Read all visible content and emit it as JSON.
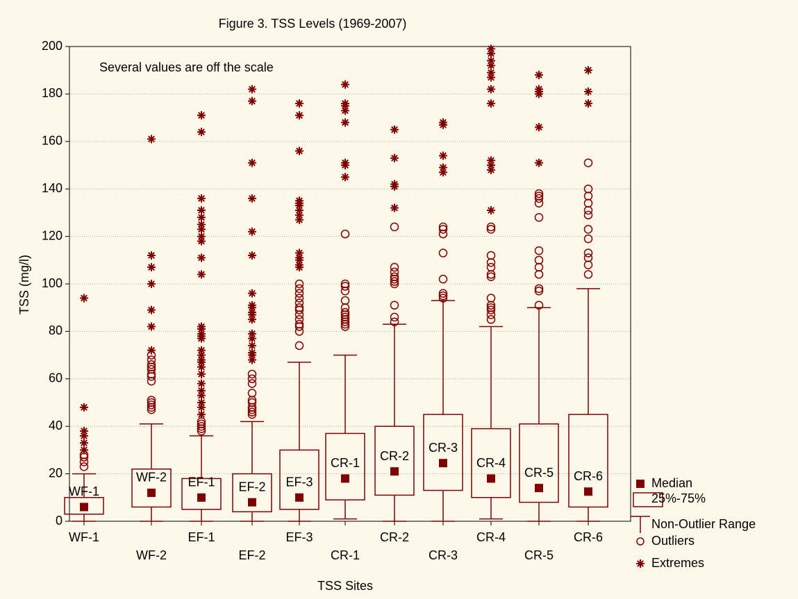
{
  "chart_data": {
    "type": "box",
    "title": "Figure 3. TSS Levels (1969-2007)",
    "xlabel": "TSS Sites",
    "ylabel": "TSS (mg/l)",
    "annotation": "Several values are off the scale",
    "color": "#7f0000",
    "annotation_color": "#1a1aff",
    "grid": true,
    "ylim": [
      0,
      200
    ],
    "yticks": [
      0,
      20,
      40,
      60,
      80,
      100,
      120,
      140,
      160,
      180,
      200
    ],
    "categories": [
      "WF-1",
      "WF-2",
      "EF-1",
      "EF-2",
      "EF-3",
      "CR-1",
      "CR-2",
      "CR-3",
      "CR-4",
      "CR-5",
      "CR-6"
    ],
    "legend": [
      "Median",
      "25%-75%",
      "Non-Outlier Range",
      "Outliers",
      "Extremes"
    ],
    "boxes": [
      {
        "median": 6,
        "q1": 3,
        "q3": 10,
        "whisker_low": 0,
        "whisker_high": 20,
        "outliers": [
          23,
          25,
          27,
          28
        ],
        "extremes": [
          30,
          33,
          36,
          38,
          48,
          94
        ]
      },
      {
        "median": 12,
        "q1": 6,
        "q3": 22,
        "whisker_low": 0,
        "whisker_high": 41,
        "outliers": [
          47,
          48,
          49,
          50,
          51,
          59,
          61,
          62,
          64,
          65,
          66,
          68,
          70
        ],
        "extremes": [
          72,
          82,
          89,
          100,
          107,
          112,
          161
        ]
      },
      {
        "median": 10,
        "q1": 5,
        "q3": 18,
        "whisker_low": 0,
        "whisker_high": 36,
        "outliers": [
          38,
          39,
          40,
          41,
          42
        ],
        "extremes": [
          45,
          48,
          50,
          53,
          55,
          58,
          62,
          65,
          67,
          68,
          70,
          72,
          77,
          78,
          79,
          81,
          82,
          104,
          111,
          118,
          120,
          123,
          125,
          128,
          131,
          136,
          164,
          171
        ]
      },
      {
        "median": 8,
        "q1": 4,
        "q3": 20,
        "whisker_low": 0,
        "whisker_high": 42,
        "outliers": [
          45,
          46,
          47,
          48,
          50,
          51,
          54,
          58,
          60,
          62
        ],
        "extremes": [
          68,
          70,
          71,
          74,
          77,
          79,
          85,
          87,
          88,
          90,
          91,
          96,
          112,
          122,
          136,
          151,
          177,
          182
        ]
      },
      {
        "median": 10,
        "q1": 5,
        "q3": 30,
        "whisker_low": 0,
        "whisker_high": 67,
        "outliers": [
          74,
          80,
          82,
          83,
          85,
          87,
          89,
          90,
          92,
          94,
          96,
          98,
          100
        ],
        "extremes": [
          107,
          108,
          110,
          111,
          113,
          127,
          129,
          131,
          133,
          134,
          135,
          156,
          171,
          176
        ]
      },
      {
        "median": 18,
        "q1": 9,
        "q3": 37,
        "whisker_low": 1,
        "whisker_high": 70,
        "outliers": [
          82,
          83,
          84,
          85,
          86,
          87,
          88,
          90,
          93,
          97,
          99,
          100,
          121
        ],
        "extremes": [
          145,
          150,
          151,
          168,
          173,
          175,
          176,
          184
        ]
      },
      {
        "median": 21,
        "q1": 11,
        "q3": 40,
        "whisker_low": 0,
        "whisker_high": 83,
        "outliers": [
          84,
          86,
          91,
          100,
          101,
          102,
          103,
          105,
          107,
          124
        ],
        "extremes": [
          132,
          141,
          142,
          153,
          165
        ]
      },
      {
        "median": 24.5,
        "q1": 13,
        "q3": 45,
        "whisker_low": 0,
        "whisker_high": 93,
        "outliers": [
          94,
          95,
          96,
          102,
          113,
          121,
          123,
          124
        ],
        "extremes": [
          147,
          149,
          154,
          167,
          168
        ]
      },
      {
        "median": 18,
        "q1": 10,
        "q3": 39,
        "whisker_low": 1,
        "whisker_high": 82,
        "outliers": [
          85,
          87,
          89,
          90,
          91,
          94,
          103,
          104,
          107,
          109,
          112,
          123,
          124
        ],
        "extremes": [
          131,
          148,
          150,
          152,
          176,
          182,
          187,
          189,
          192,
          194,
          197,
          199
        ]
      },
      {
        "median": 14,
        "q1": 8,
        "q3": 41,
        "whisker_low": 0,
        "whisker_high": 90,
        "outliers": [
          91,
          97,
          98,
          104,
          107,
          110,
          114,
          128,
          134,
          136,
          137,
          138
        ],
        "extremes": [
          151,
          166,
          180,
          181,
          182,
          188
        ]
      },
      {
        "median": 12.5,
        "q1": 6,
        "q3": 45,
        "whisker_low": 0,
        "whisker_high": 98,
        "outliers": [
          104,
          108,
          111,
          113,
          119,
          123,
          129,
          131,
          134,
          137,
          140,
          151
        ],
        "extremes": [
          176,
          181,
          190
        ]
      }
    ]
  }
}
